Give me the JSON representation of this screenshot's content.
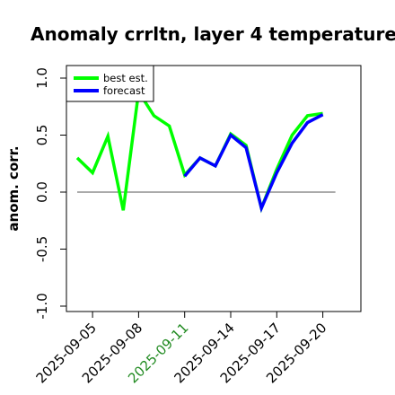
{
  "chart_data": {
    "type": "line",
    "title": "Anomaly crrltn, layer 4 temperature",
    "xlabel": "",
    "ylabel": "anom. corr.",
    "ylim": [
      -1.0,
      1.0
    ],
    "yticks": [
      "-1.0",
      "-0.5",
      "0.0",
      "0.5",
      "1.0"
    ],
    "x": [
      "2025-09-04",
      "2025-09-05",
      "2025-09-06",
      "2025-09-07",
      "2025-09-08",
      "2025-09-09",
      "2025-09-10",
      "2025-09-11",
      "2025-09-12",
      "2025-09-13",
      "2025-09-14",
      "2025-09-15",
      "2025-09-16",
      "2025-09-17",
      "2025-09-18",
      "2025-09-19",
      "2025-09-20"
    ],
    "xticks": [
      "2025-09-05",
      "2025-09-08",
      "2025-09-11",
      "2025-09-14",
      "2025-09-17",
      "2025-09-20"
    ],
    "highlighted_xtick": "2025-09-11",
    "highlight_color": "#228B22",
    "reference_line": 0,
    "legend": "top-left",
    "grid": false,
    "series": [
      {
        "name": "best est.",
        "color": "#00ff00",
        "values": [
          0.3,
          0.17,
          0.49,
          -0.16,
          0.88,
          0.67,
          0.58,
          0.15,
          0.3,
          0.23,
          0.51,
          0.41,
          -0.14,
          0.2,
          0.5,
          0.67,
          0.69
        ]
      },
      {
        "name": "forecast",
        "color": "#0000ff",
        "values": [
          null,
          null,
          null,
          null,
          null,
          null,
          null,
          0.14,
          0.3,
          0.23,
          0.5,
          0.39,
          -0.14,
          0.17,
          0.43,
          0.61,
          0.68
        ]
      }
    ]
  }
}
